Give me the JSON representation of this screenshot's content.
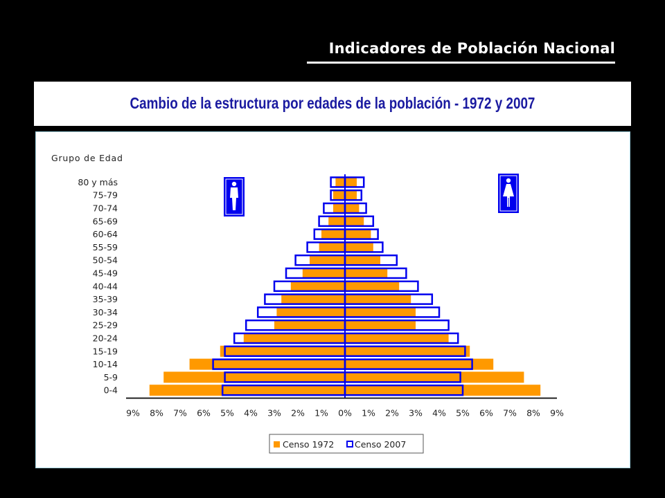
{
  "header": {
    "title": "Indicadores de Población Nacional"
  },
  "chart_title": "Cambio de la estructura por edades de la población - 1972 y 2007",
  "chart_data": {
    "type": "bar",
    "subtype": "population-pyramid",
    "yaxis_title": "Grupo de Edad",
    "categories": [
      "80 y más",
      "75-79",
      "70-74",
      "65-69",
      "60-64",
      "55-59",
      "50-54",
      "45-49",
      "40-44",
      "35-39",
      "30-34",
      "25-29",
      "20-24",
      "15-19",
      "10-14",
      "5-9",
      "0-4"
    ],
    "xticks": [
      "9%",
      "8%",
      "7%",
      "6%",
      "5%",
      "4%",
      "3%",
      "2%",
      "1%",
      "0%",
      "1%",
      "2%",
      "3%",
      "4%",
      "5%",
      "6%",
      "7%",
      "8%",
      "9%"
    ],
    "xlim": [
      -9,
      9
    ],
    "series": [
      {
        "name": "Censo 1972",
        "style": "filled",
        "color": "#ff9900",
        "male": [
          0.4,
          0.5,
          0.5,
          0.7,
          1.0,
          1.1,
          1.5,
          1.8,
          2.3,
          2.7,
          2.9,
          3.0,
          4.3,
          5.3,
          6.6,
          7.7,
          8.3
        ],
        "female": [
          0.5,
          0.5,
          0.6,
          0.8,
          1.1,
          1.2,
          1.5,
          1.8,
          2.3,
          2.8,
          3.0,
          3.0,
          4.4,
          5.3,
          6.3,
          7.6,
          8.3
        ]
      },
      {
        "name": "Censo 2007",
        "style": "outline",
        "color": "#0000ee",
        "male": [
          0.6,
          0.6,
          0.9,
          1.1,
          1.3,
          1.6,
          2.1,
          2.5,
          3.0,
          3.4,
          3.7,
          4.2,
          4.7,
          5.1,
          5.6,
          5.1,
          5.2
        ],
        "female": [
          0.8,
          0.7,
          0.9,
          1.2,
          1.4,
          1.6,
          2.2,
          2.6,
          3.1,
          3.7,
          4.0,
          4.4,
          4.8,
          5.1,
          5.4,
          4.9,
          5.0
        ]
      }
    ],
    "legend_position": "bottom-center",
    "grid": false,
    "icons": {
      "left": "male-figure-icon",
      "right": "female-figure-icon"
    }
  }
}
